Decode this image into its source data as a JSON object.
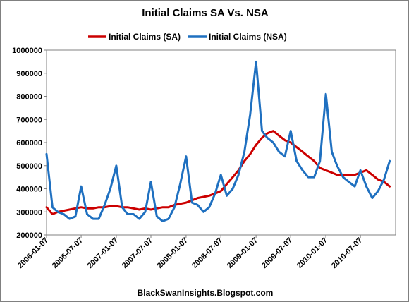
{
  "chart_data": {
    "type": "line",
    "title": "Initial Claims SA Vs. NSA",
    "footer": "BlackSwanInsights.Blogspot.com",
    "xlabel": "",
    "ylabel": "",
    "x_tick_labels": [
      "2006-01-07",
      "2006-07-07",
      "2007-01-07",
      "2007-07-07",
      "2008-01-07",
      "2008-07-07",
      "2009-01-07",
      "2009-07-07",
      "2010-01-07",
      "2010-07-07"
    ],
    "y_tick_labels": [
      "200000",
      "300000",
      "400000",
      "500000",
      "600000",
      "700000",
      "800000",
      "900000",
      "1000000"
    ],
    "ylim": [
      200000,
      1000000
    ],
    "xlim": [
      "2006-01-07",
      "2011-01-07"
    ],
    "grid": false,
    "legend_position": "top",
    "x": [
      "2006-01-07",
      "2006-02-07",
      "2006-03-07",
      "2006-04-07",
      "2006-05-07",
      "2006-06-07",
      "2006-07-07",
      "2006-08-07",
      "2006-09-07",
      "2006-10-07",
      "2006-11-07",
      "2006-12-07",
      "2007-01-07",
      "2007-02-07",
      "2007-03-07",
      "2007-04-07",
      "2007-05-07",
      "2007-06-07",
      "2007-07-07",
      "2007-08-07",
      "2007-09-07",
      "2007-10-07",
      "2007-11-07",
      "2007-12-07",
      "2008-01-07",
      "2008-02-07",
      "2008-03-07",
      "2008-04-07",
      "2008-05-07",
      "2008-06-07",
      "2008-07-07",
      "2008-08-07",
      "2008-09-07",
      "2008-10-07",
      "2008-11-07",
      "2008-12-07",
      "2009-01-07",
      "2009-02-07",
      "2009-03-07",
      "2009-04-07",
      "2009-05-07",
      "2009-06-07",
      "2009-07-07",
      "2009-08-07",
      "2009-09-07",
      "2009-10-07",
      "2009-11-07",
      "2009-12-07",
      "2010-01-07",
      "2010-02-07",
      "2010-03-07",
      "2010-04-07",
      "2010-05-07",
      "2010-06-07",
      "2010-07-07",
      "2010-08-07",
      "2010-09-07",
      "2010-10-07",
      "2010-11-07",
      "2010-12-07"
    ],
    "series": [
      {
        "name": "Initial Claims (SA)",
        "color": "#cc0000",
        "values": [
          320000,
          290000,
          300000,
          305000,
          310000,
          315000,
          320000,
          315000,
          315000,
          320000,
          320000,
          325000,
          325000,
          320000,
          320000,
          315000,
          310000,
          315000,
          310000,
          315000,
          320000,
          320000,
          330000,
          335000,
          340000,
          350000,
          360000,
          365000,
          370000,
          380000,
          390000,
          420000,
          450000,
          480000,
          520000,
          550000,
          590000,
          620000,
          640000,
          650000,
          630000,
          610000,
          600000,
          580000,
          560000,
          540000,
          520000,
          490000,
          480000,
          470000,
          460000,
          460000,
          460000,
          460000,
          470000,
          480000,
          460000,
          440000,
          430000,
          410000
        ]
      },
      {
        "name": "Initial Claims (NSA)",
        "color": "#1f70c0",
        "values": [
          550000,
          320000,
          300000,
          290000,
          270000,
          280000,
          410000,
          290000,
          270000,
          270000,
          330000,
          400000,
          500000,
          320000,
          290000,
          290000,
          270000,
          300000,
          430000,
          280000,
          260000,
          270000,
          320000,
          420000,
          540000,
          340000,
          330000,
          300000,
          320000,
          380000,
          460000,
          370000,
          400000,
          460000,
          560000,
          720000,
          950000,
          650000,
          620000,
          600000,
          560000,
          540000,
          650000,
          520000,
          480000,
          450000,
          450000,
          520000,
          810000,
          560000,
          500000,
          450000,
          430000,
          410000,
          480000,
          410000,
          360000,
          390000,
          440000,
          520000
        ]
      }
    ]
  }
}
